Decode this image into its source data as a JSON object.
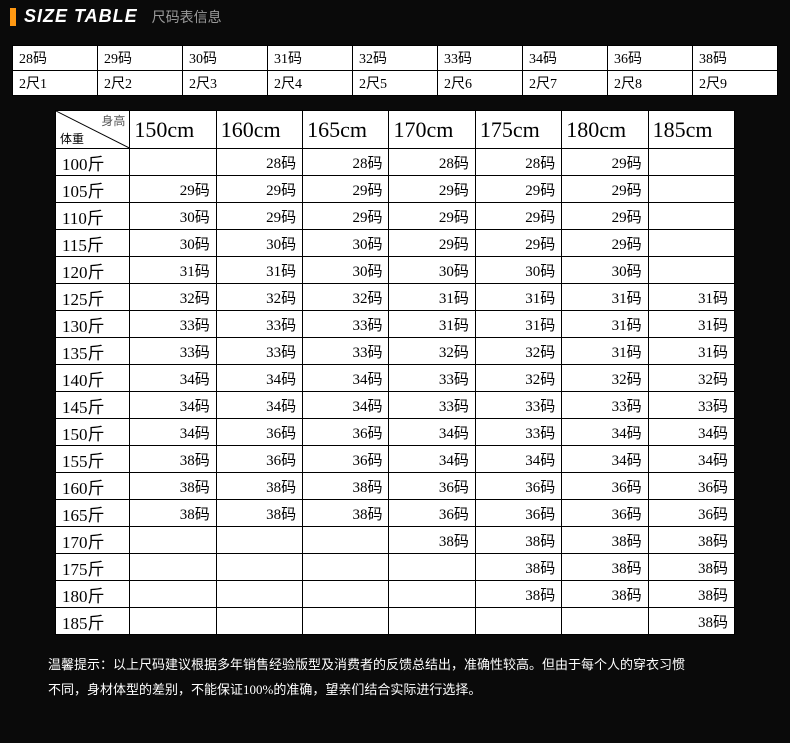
{
  "header": {
    "title_en": "SIZE TABLE",
    "title_cn": "尺码表信息",
    "accent_color": "#ff9812"
  },
  "size_map": {
    "row1": [
      "28码",
      "29码",
      "30码",
      "31码",
      "32码",
      "33码",
      "34码",
      "36码",
      "38码"
    ],
    "row2": [
      "2尺1",
      "2尺2",
      "2尺3",
      "2尺4",
      "2尺5",
      "2尺6",
      "2尺7",
      "2尺8",
      "2尺9"
    ]
  },
  "main": {
    "corner_top": "身高",
    "corner_bottom": "体重",
    "heights": [
      "150cm",
      "160cm",
      "165cm",
      "170cm",
      "175cm",
      "180cm",
      "185cm"
    ],
    "weights": [
      "100斤",
      "105斤",
      "110斤",
      "115斤",
      "120斤",
      "125斤",
      "130斤",
      "135斤",
      "140斤",
      "145斤",
      "150斤",
      "155斤",
      "160斤",
      "165斤",
      "170斤",
      "175斤",
      "180斤",
      "185斤"
    ],
    "values": [
      [
        "",
        "28码",
        "28码",
        "28码",
        "28码",
        "29码",
        ""
      ],
      [
        "29码",
        "29码",
        "29码",
        "29码",
        "29码",
        "29码",
        ""
      ],
      [
        "30码",
        "29码",
        "29码",
        "29码",
        "29码",
        "29码",
        ""
      ],
      [
        "30码",
        "30码",
        "30码",
        "29码",
        "29码",
        "29码",
        ""
      ],
      [
        "31码",
        "31码",
        "30码",
        "30码",
        "30码",
        "30码",
        ""
      ],
      [
        "32码",
        "32码",
        "32码",
        "31码",
        "31码",
        "31码",
        "31码"
      ],
      [
        "33码",
        "33码",
        "33码",
        "31码",
        "31码",
        "31码",
        "31码"
      ],
      [
        "33码",
        "33码",
        "33码",
        "32码",
        "32码",
        "31码",
        "31码"
      ],
      [
        "34码",
        "34码",
        "34码",
        "33码",
        "32码",
        "32码",
        "32码"
      ],
      [
        "34码",
        "34码",
        "34码",
        "33码",
        "33码",
        "33码",
        "33码"
      ],
      [
        "34码",
        "36码",
        "36码",
        "34码",
        "33码",
        "34码",
        "34码"
      ],
      [
        "38码",
        "36码",
        "36码",
        "34码",
        "34码",
        "34码",
        "34码"
      ],
      [
        "38码",
        "38码",
        "38码",
        "36码",
        "36码",
        "36码",
        "36码"
      ],
      [
        "38码",
        "38码",
        "38码",
        "36码",
        "36码",
        "36码",
        "36码"
      ],
      [
        "",
        "",
        "",
        "38码",
        "38码",
        "38码",
        "38码"
      ],
      [
        "",
        "",
        "",
        "",
        "38码",
        "38码",
        "38码"
      ],
      [
        "",
        "",
        "",
        "",
        "38码",
        "38码",
        "38码"
      ],
      [
        "",
        "",
        "",
        "",
        "",
        "",
        "38码"
      ]
    ]
  },
  "footer": {
    "line1": "温馨提示：以上尺码建议根据多年销售经验版型及消费者的反馈总结出，准确性较高。但由于每个人的穿衣习惯",
    "line2": "不同，身材体型的差别，不能保证100%的准确，望亲们结合实际进行选择。"
  },
  "colors": {
    "bg": "#0a0a0a",
    "white": "#ffffff",
    "border": "#000000",
    "subtitle": "#9a9a9a"
  }
}
